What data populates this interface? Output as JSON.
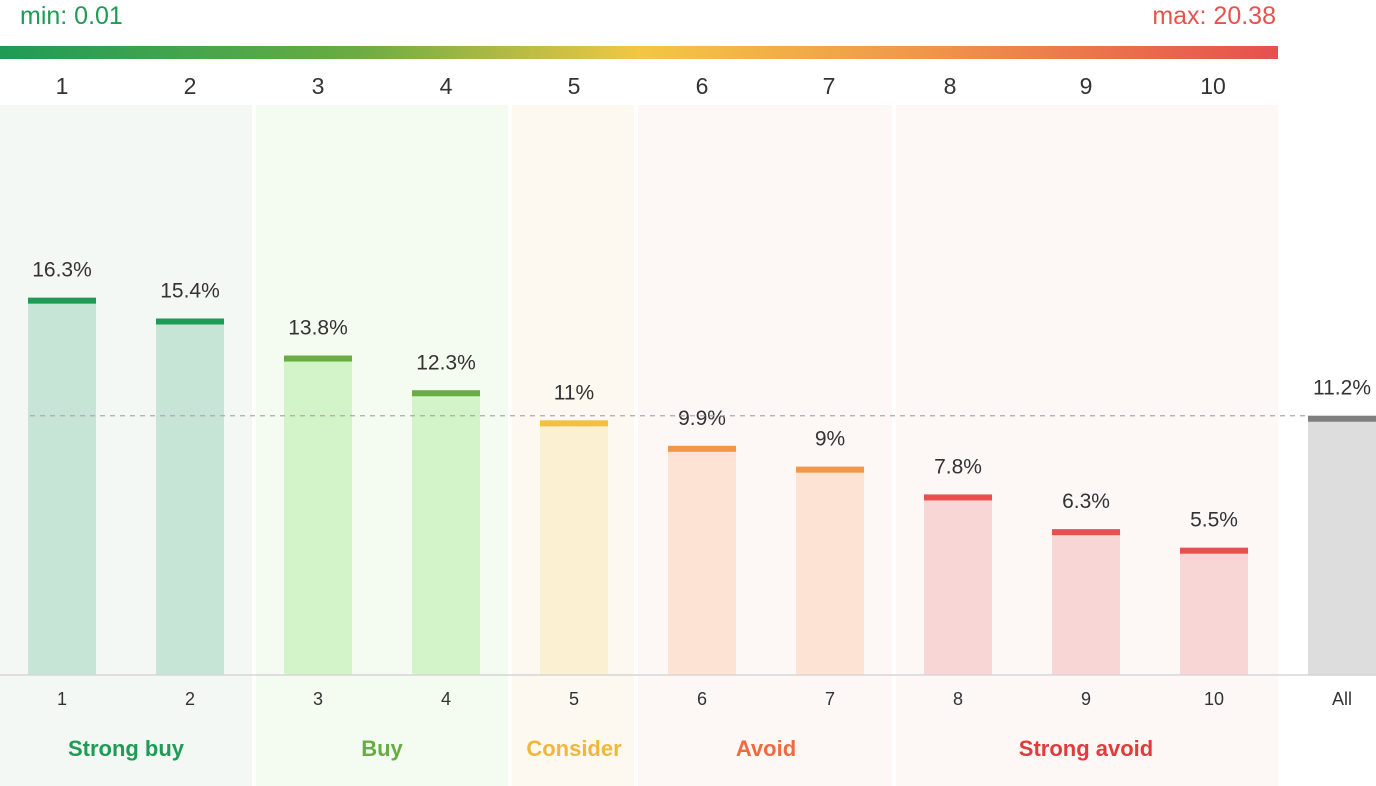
{
  "scale": {
    "min_label": "min: 0.01",
    "max_label": "max: 20.38",
    "min_color": "#1e9b55",
    "max_color": "#e5534b",
    "ticks": [
      "1",
      "2",
      "3",
      "4",
      "5",
      "6",
      "7",
      "8",
      "9",
      "10"
    ]
  },
  "chart_data": {
    "type": "bar",
    "categories": [
      "1",
      "2",
      "3",
      "4",
      "5",
      "6",
      "7",
      "8",
      "9",
      "10",
      "All"
    ],
    "values": [
      16.3,
      15.4,
      13.8,
      12.3,
      11,
      9.9,
      9,
      7.8,
      6.3,
      5.5,
      11.2
    ],
    "value_labels": [
      "16.3%",
      "15.4%",
      "13.8%",
      "12.3%",
      "11%",
      "9.9%",
      "9%",
      "7.8%",
      "6.3%",
      "5.5%",
      "11.2%"
    ],
    "ylim": [
      0,
      24
    ],
    "reference_line": 11.2,
    "groups": [
      {
        "label": "Strong buy",
        "categories": [
          "1",
          "2"
        ],
        "color": "#1e9b55",
        "fill": "#c7e5d6",
        "panel": "#f3f8f5"
      },
      {
        "label": "Buy",
        "categories": [
          "3",
          "4"
        ],
        "color": "#6aac44",
        "fill": "#d3f3c9",
        "panel": "#f4fbf1"
      },
      {
        "label": "Consider",
        "categories": [
          "5"
        ],
        "color": "#f0c23c",
        "fill": "#fbf0d2",
        "panel": "#fdf9f1"
      },
      {
        "label": "Avoid",
        "categories": [
          "6",
          "7"
        ],
        "color": "#f0974a",
        "fill": "#fde3d4",
        "panel": "#fdf8f5"
      },
      {
        "label": "Strong avoid",
        "categories": [
          "8",
          "9",
          "10"
        ],
        "color": "#e6504f",
        "fill": "#f8d6d6",
        "panel": "#fdf7f6"
      }
    ],
    "all_bar": {
      "label": "All",
      "color": "#7f7f7f",
      "fill": "#dddddd"
    },
    "group_label_colors": [
      "#1e9b55",
      "#6aac44",
      "#f0b83a",
      "#f0693f",
      "#e23b3b"
    ]
  }
}
